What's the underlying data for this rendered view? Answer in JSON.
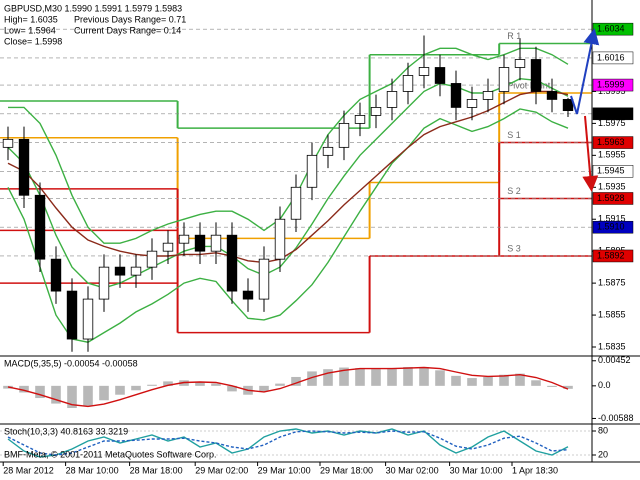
{
  "chart_data": [
    {
      "type": "candlestick",
      "header": [
        "GBPUSD,M30  1.5990 1.5991 1.5979 1.5983",
        "High= 1.6035",
        "Previous Days Range= 0.71",
        "Low= 1.5964",
        "Current Days Range= 0.14",
        "Close= 1.5998"
      ],
      "x": [
        0,
        1,
        2,
        3,
        4,
        5,
        6,
        7,
        8,
        9,
        10,
        11,
        12,
        13,
        14,
        15,
        16,
        17,
        18,
        19,
        20,
        21,
        22,
        23,
        24,
        25,
        26,
        27,
        28,
        29,
        30,
        31,
        32,
        33,
        34,
        35
      ],
      "open": [
        1.596,
        1.5965,
        1.593,
        1.589,
        1.587,
        1.584,
        1.5865,
        1.5885,
        1.588,
        1.5885,
        1.5895,
        1.59,
        1.5905,
        1.5895,
        1.5905,
        1.587,
        1.5865,
        1.589,
        1.5915,
        1.5935,
        1.5955,
        1.596,
        1.5975,
        1.598,
        1.5985,
        1.5995,
        1.6005,
        1.601,
        1.6,
        1.5985,
        1.599,
        1.5995,
        1.601,
        1.6015,
        1.5995,
        1.599
      ],
      "high": [
        1.5973,
        1.5973,
        1.5938,
        1.5898,
        1.5878,
        1.5873,
        1.5893,
        1.5893,
        1.5893,
        1.5903,
        1.5908,
        1.5913,
        1.5913,
        1.5913,
        1.5913,
        1.5878,
        1.5898,
        1.5923,
        1.5943,
        1.5963,
        1.5968,
        1.5983,
        1.5988,
        1.5993,
        1.6003,
        1.6013,
        1.603,
        1.6018,
        1.6008,
        1.5998,
        1.6003,
        1.6018,
        1.6028,
        1.6023,
        1.6003,
        1.5991
      ],
      "low": [
        1.5952,
        1.5922,
        1.5882,
        1.5862,
        1.5832,
        1.5832,
        1.5857,
        1.5872,
        1.5872,
        1.5877,
        1.5887,
        1.5892,
        1.5887,
        1.5887,
        1.5862,
        1.5857,
        1.5857,
        1.5882,
        1.5907,
        1.5927,
        1.5947,
        1.5952,
        1.5967,
        1.5972,
        1.5977,
        1.5987,
        1.5997,
        1.5992,
        1.5977,
        1.5977,
        1.5982,
        1.5987,
        1.6002,
        1.5987,
        1.5982,
        1.5979
      ],
      "close": [
        1.5965,
        1.593,
        1.589,
        1.587,
        1.584,
        1.5865,
        1.5885,
        1.588,
        1.5885,
        1.5895,
        1.59,
        1.5905,
        1.5895,
        1.5905,
        1.587,
        1.5865,
        1.589,
        1.5915,
        1.5935,
        1.5955,
        1.596,
        1.5975,
        1.598,
        1.5985,
        1.5995,
        1.6005,
        1.601,
        1.6,
        1.5985,
        1.599,
        1.5995,
        1.601,
        1.6015,
        1.5995,
        1.599,
        1.5983
      ],
      "series": [
        {
          "color": "#3cb043",
          "values": [
            1.5985,
            1.5985,
            1.5975,
            1.5955,
            1.593,
            1.591,
            1.59,
            1.59,
            1.5903,
            1.5908,
            1.5912,
            1.5915,
            1.5918,
            1.592,
            1.592,
            1.5915,
            1.5908,
            1.5915,
            1.593,
            1.595,
            1.5968,
            1.598,
            1.599,
            1.5995,
            1.6,
            1.601,
            1.6018,
            1.6022,
            1.6022,
            1.6018,
            1.6015,
            1.6018,
            1.6022,
            1.6022,
            1.6018,
            1.6012
          ]
        },
        {
          "color": "#3cb043",
          "values": [
            1.596,
            1.595,
            1.593,
            1.5905,
            1.5885,
            1.5875,
            1.5872,
            1.5875,
            1.588,
            1.5885,
            1.589,
            1.5895,
            1.5898,
            1.5898,
            1.5892,
            1.5884,
            1.588,
            1.5885,
            1.5897,
            1.5912,
            1.5928,
            1.5942,
            1.5955,
            1.5965,
            1.5975,
            1.5985,
            1.5995,
            1.6,
            1.5998,
            1.5994,
            1.5994,
            1.5998,
            1.6003,
            1.6002,
            1.5997,
            1.5992
          ]
        },
        {
          "color": "#3cb043",
          "values": [
            1.5935,
            1.5915,
            1.5885,
            1.5855,
            1.584,
            1.5838,
            1.5844,
            1.585,
            1.5857,
            1.5862,
            1.5868,
            1.5875,
            1.5878,
            1.5876,
            1.5864,
            1.5853,
            1.5852,
            1.5855,
            1.5864,
            1.5874,
            1.5888,
            1.5904,
            1.592,
            1.5935,
            1.595,
            1.596,
            1.5972,
            1.5978,
            1.5974,
            1.597,
            1.5973,
            1.5978,
            1.5984,
            1.5982,
            1.5976,
            1.5972
          ]
        },
        {
          "color": "#8b2a1a",
          "values": [
            1.595,
            1.5945,
            1.5935,
            1.5922,
            1.591,
            1.5902,
            1.5898,
            1.5895,
            1.5893,
            1.5892,
            1.5892,
            1.5893,
            1.5893,
            1.5894,
            1.5892,
            1.5889,
            1.5888,
            1.589,
            1.5896,
            1.5905,
            1.5914,
            1.5924,
            1.5933,
            1.5942,
            1.5951,
            1.596,
            1.5968,
            1.5973,
            1.5976,
            1.5979,
            1.5983,
            1.5988,
            1.5993,
            1.5995,
            1.5995,
            1.5993
          ]
        }
      ],
      "level_breaks": [
        -0.5,
        10.6,
        22.6,
        30.7,
        36.5
      ],
      "levels": [
        {
          "name": "R 1",
          "color": "#3cb043",
          "values": [
            1.5989,
            1.5972,
            1.6018,
            1.6025
          ]
        },
        {
          "name": "Pivot Point",
          "color": "#f0a000",
          "values": [
            1.5966,
            1.5903,
            1.5938,
            1.5994
          ]
        },
        {
          "name": "S 1",
          "color": "#d01010",
          "values": [
            1.5934,
            1.5844,
            1.5892,
            1.5963
          ]
        },
        {
          "name": "S 2",
          "color": "#d01010",
          "values": [
            1.5908,
            null,
            null,
            1.5928
          ]
        },
        {
          "name": "S 3",
          "color": "#d01010",
          "values": [
            1.5875,
            null,
            null,
            1.5892
          ]
        }
      ],
      "markers": [
        {
          "value": 1.6034,
          "color": "#00c000",
          "text_color": "#ffffff"
        },
        {
          "value": 1.6016,
          "color": "#ffffff",
          "text_color": "#000000"
        },
        {
          "value": 1.5999,
          "color": "#ff00ff",
          "text_color": "#ffffff"
        },
        {
          "value": 1.5981,
          "color": "#000000",
          "text_color": "#ffffff"
        },
        {
          "value": 1.5963,
          "color": "#e00000",
          "text_color": "#ffffff"
        },
        {
          "value": 1.5945,
          "color": "#ffffff",
          "text_color": "#000000"
        },
        {
          "value": 1.5928,
          "color": "#e00000",
          "text_color": "#ffffff"
        },
        {
          "value": 1.591,
          "label": "1.5910",
          "color": "#0000c0",
          "text_color": "#ffffff"
        },
        {
          "value": 1.5892,
          "color": "#e00000",
          "text_color": "#ffffff"
        }
      ],
      "ylim": [
        1.583,
        1.6051
      ],
      "yticks": [
        1.5835,
        1.5855,
        1.5875,
        1.5895,
        1.5915,
        1.5935,
        1.5955,
        1.5975,
        1.5995
      ],
      "xlim": [
        -0.5,
        36.5
      ],
      "xticks": [
        {
          "value": -0.3,
          "label": "28 Mar 2012"
        },
        {
          "value": 3.6,
          "label": "28 Mar 10:00"
        },
        {
          "value": 7.6,
          "label": "28 Mar 18:00"
        },
        {
          "value": 11.7,
          "label": "29 Mar 02:00"
        },
        {
          "value": 15.6,
          "label": "29 Mar 10:00"
        },
        {
          "value": 19.5,
          "label": "29 Mar 18:00"
        },
        {
          "value": 23.6,
          "label": "30 Mar 02:00"
        },
        {
          "value": 27.6,
          "label": "30 Mar 10:00"
        },
        {
          "value": 31.5,
          "label": "1 Apr 18:30"
        }
      ]
    },
    {
      "type": "macd",
      "title": "MACD(5,35,5) -0.00054 -0.00058",
      "series": [
        {
          "kind": "bar",
          "color": "#b8b8b8",
          "values": [
            -0.0005,
            -0.0012,
            -0.0022,
            -0.0032,
            -0.004,
            -0.0036,
            -0.0026,
            -0.0016,
            -0.0008,
            0.0002,
            0.0008,
            0.001,
            0.0006,
            0.0004,
            -0.001,
            -0.0016,
            -0.001,
            0.0004,
            0.0016,
            0.0026,
            0.003,
            0.0033,
            0.0032,
            0.003,
            0.0032,
            0.0034,
            0.0034,
            0.0028,
            0.0018,
            0.0014,
            0.0016,
            0.002,
            0.0022,
            0.001,
            -0.0002,
            -0.00054
          ]
        },
        {
          "kind": "line",
          "color": "#d01010",
          "values": [
            -0.0002,
            -0.0008,
            -0.0016,
            -0.0025,
            -0.0034,
            -0.0037,
            -0.0033,
            -0.0025,
            -0.0016,
            -0.0007,
            0.0001,
            0.0006,
            0.0007,
            0.0006,
            0.0,
            -0.0008,
            -0.0011,
            -0.0005,
            0.0005,
            0.0015,
            0.0023,
            0.0028,
            0.0031,
            0.0031,
            0.0031,
            0.0032,
            0.0033,
            0.0031,
            0.0025,
            0.0019,
            0.0017,
            0.0018,
            0.002,
            0.0015,
            0.0006,
            -0.00058
          ]
        }
      ],
      "ylim": [
        -0.0067,
        0.0052
      ],
      "yticks": [
        0.00452,
        {
          "value": 0,
          "label": "0.0"
        },
        -0.00588
      ]
    },
    {
      "type": "stochastic",
      "title": "Stoch(10,3,3) 40.8163 33.3219",
      "series": [
        {
          "kind": "line",
          "color": "#20a0a0",
          "values": [
            60,
            30,
            15,
            20,
            35,
            55,
            65,
            50,
            60,
            70,
            55,
            65,
            40,
            50,
            25,
            35,
            65,
            80,
            85,
            75,
            80,
            70,
            80,
            75,
            85,
            70,
            80,
            45,
            25,
            40,
            65,
            80,
            55,
            30,
            20,
            40.8163
          ]
        },
        {
          "kind": "line",
          "dash": true,
          "color": "#2060c0",
          "values": [
            65,
            45,
            25,
            20,
            25,
            40,
            55,
            55,
            57,
            60,
            60,
            62,
            55,
            50,
            40,
            35,
            45,
            65,
            78,
            80,
            78,
            75,
            77,
            75,
            80,
            77,
            78,
            62,
            42,
            35,
            45,
            62,
            67,
            50,
            30,
            33.3219
          ]
        }
      ],
      "ylim": [
        2.5,
        95
      ],
      "yticks": [
        80,
        20
      ]
    }
  ],
  "watermark": "BMF-Meta, © 2001-2011 MetaQuotes Software Corp."
}
